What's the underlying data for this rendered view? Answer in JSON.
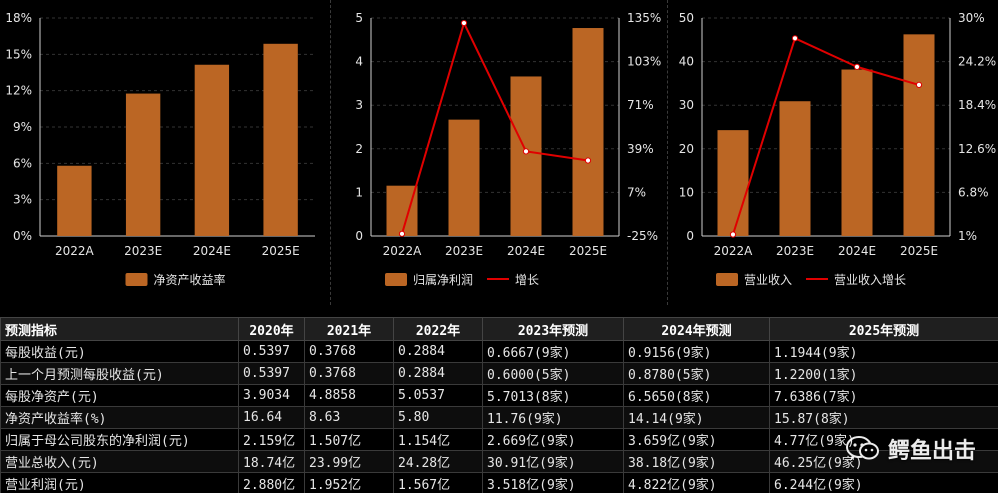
{
  "colors": {
    "bar": "#bb6624",
    "line": "#e00000",
    "marker": "#ffffff",
    "background": "#000000"
  },
  "chart_data": [
    {
      "type": "bar",
      "categories": [
        "2022A",
        "2023E",
        "2024E",
        "2025E"
      ],
      "series": [
        {
          "name": "净资产收益率",
          "values": [
            5.8,
            11.76,
            14.14,
            15.87
          ]
        }
      ],
      "ylim": [
        0,
        18
      ],
      "yticks": [
        "0%",
        "3%",
        "6%",
        "9%",
        "12%",
        "15%",
        "18%"
      ],
      "legend": "bottom"
    },
    {
      "type": "bar",
      "categories": [
        "2022A",
        "2023E",
        "2024E",
        "2025E"
      ],
      "series": [
        {
          "name": "归属净利润",
          "values": [
            1.154,
            2.669,
            3.659,
            4.77
          ]
        },
        {
          "name": "增长",
          "type": "line",
          "axis": "right",
          "values": [
            -23.4,
            131.3,
            37.1,
            30.4
          ]
        }
      ],
      "ylim": [
        0,
        5
      ],
      "yticks": [
        "0",
        "1",
        "2",
        "3",
        "4",
        "5"
      ],
      "y2lim": [
        -25,
        135
      ],
      "y2ticks": [
        "-25%",
        "7%",
        "39%",
        "71%",
        "103%",
        "135%"
      ],
      "legend": "bottom"
    },
    {
      "type": "bar",
      "categories": [
        "2022A",
        "2023E",
        "2024E",
        "2025E"
      ],
      "series": [
        {
          "name": "营业收入",
          "values": [
            24.28,
            30.91,
            38.18,
            46.25
          ]
        },
        {
          "name": "营业收入增长",
          "type": "line",
          "axis": "right",
          "values": [
            1.2,
            27.3,
            23.5,
            21.1
          ]
        }
      ],
      "ylim": [
        0,
        50
      ],
      "yticks": [
        "0",
        "10",
        "20",
        "30",
        "40",
        "50"
      ],
      "y2lim": [
        1,
        30
      ],
      "y2ticks": [
        "1%",
        "6.8%",
        "12.6%",
        "18.4%",
        "24.2%",
        "30%"
      ],
      "legend": "bottom"
    }
  ],
  "table": {
    "headers": [
      "预测指标",
      "2020年",
      "2021年",
      "2022年",
      "2023年预测",
      "2024年预测",
      "2025年预测"
    ],
    "rows": [
      [
        "每股收益(元)",
        "0.5397",
        "0.3768",
        "0.2884",
        "0.6667(9家)",
        "0.9156(9家)",
        "1.1944(9家)"
      ],
      [
        "上一个月预测每股收益(元)",
        "0.5397",
        "0.3768",
        "0.2884",
        "0.6000(5家)",
        "0.8780(5家)",
        "1.2200(1家)"
      ],
      [
        "每股净资产(元)",
        "3.9034",
        "4.8858",
        "5.0537",
        "5.7013(8家)",
        "6.5650(8家)",
        "7.6386(7家)"
      ],
      [
        "净资产收益率(%)",
        "16.64",
        "8.63",
        "5.80",
        "11.76(9家)",
        "14.14(9家)",
        "15.87(8家)"
      ],
      [
        "归属于母公司股东的净利润(元)",
        "2.159亿",
        "1.507亿",
        "1.154亿",
        "2.669亿(9家)",
        "3.659亿(9家)",
        "4.77亿(9家)"
      ],
      [
        "营业总收入(元)",
        "18.74亿",
        "23.99亿",
        "24.28亿",
        "30.91亿(9家)",
        "38.18亿(9家)",
        "46.25亿(9家)"
      ],
      [
        "营业利润(元)",
        "2.880亿",
        "1.952亿",
        "1.567亿",
        "3.518亿(9家)",
        "4.822亿(9家)",
        "6.244亿(9家)"
      ]
    ]
  },
  "watermark": {
    "text": "鳄鱼出击",
    "icon": "wechat-icon"
  }
}
